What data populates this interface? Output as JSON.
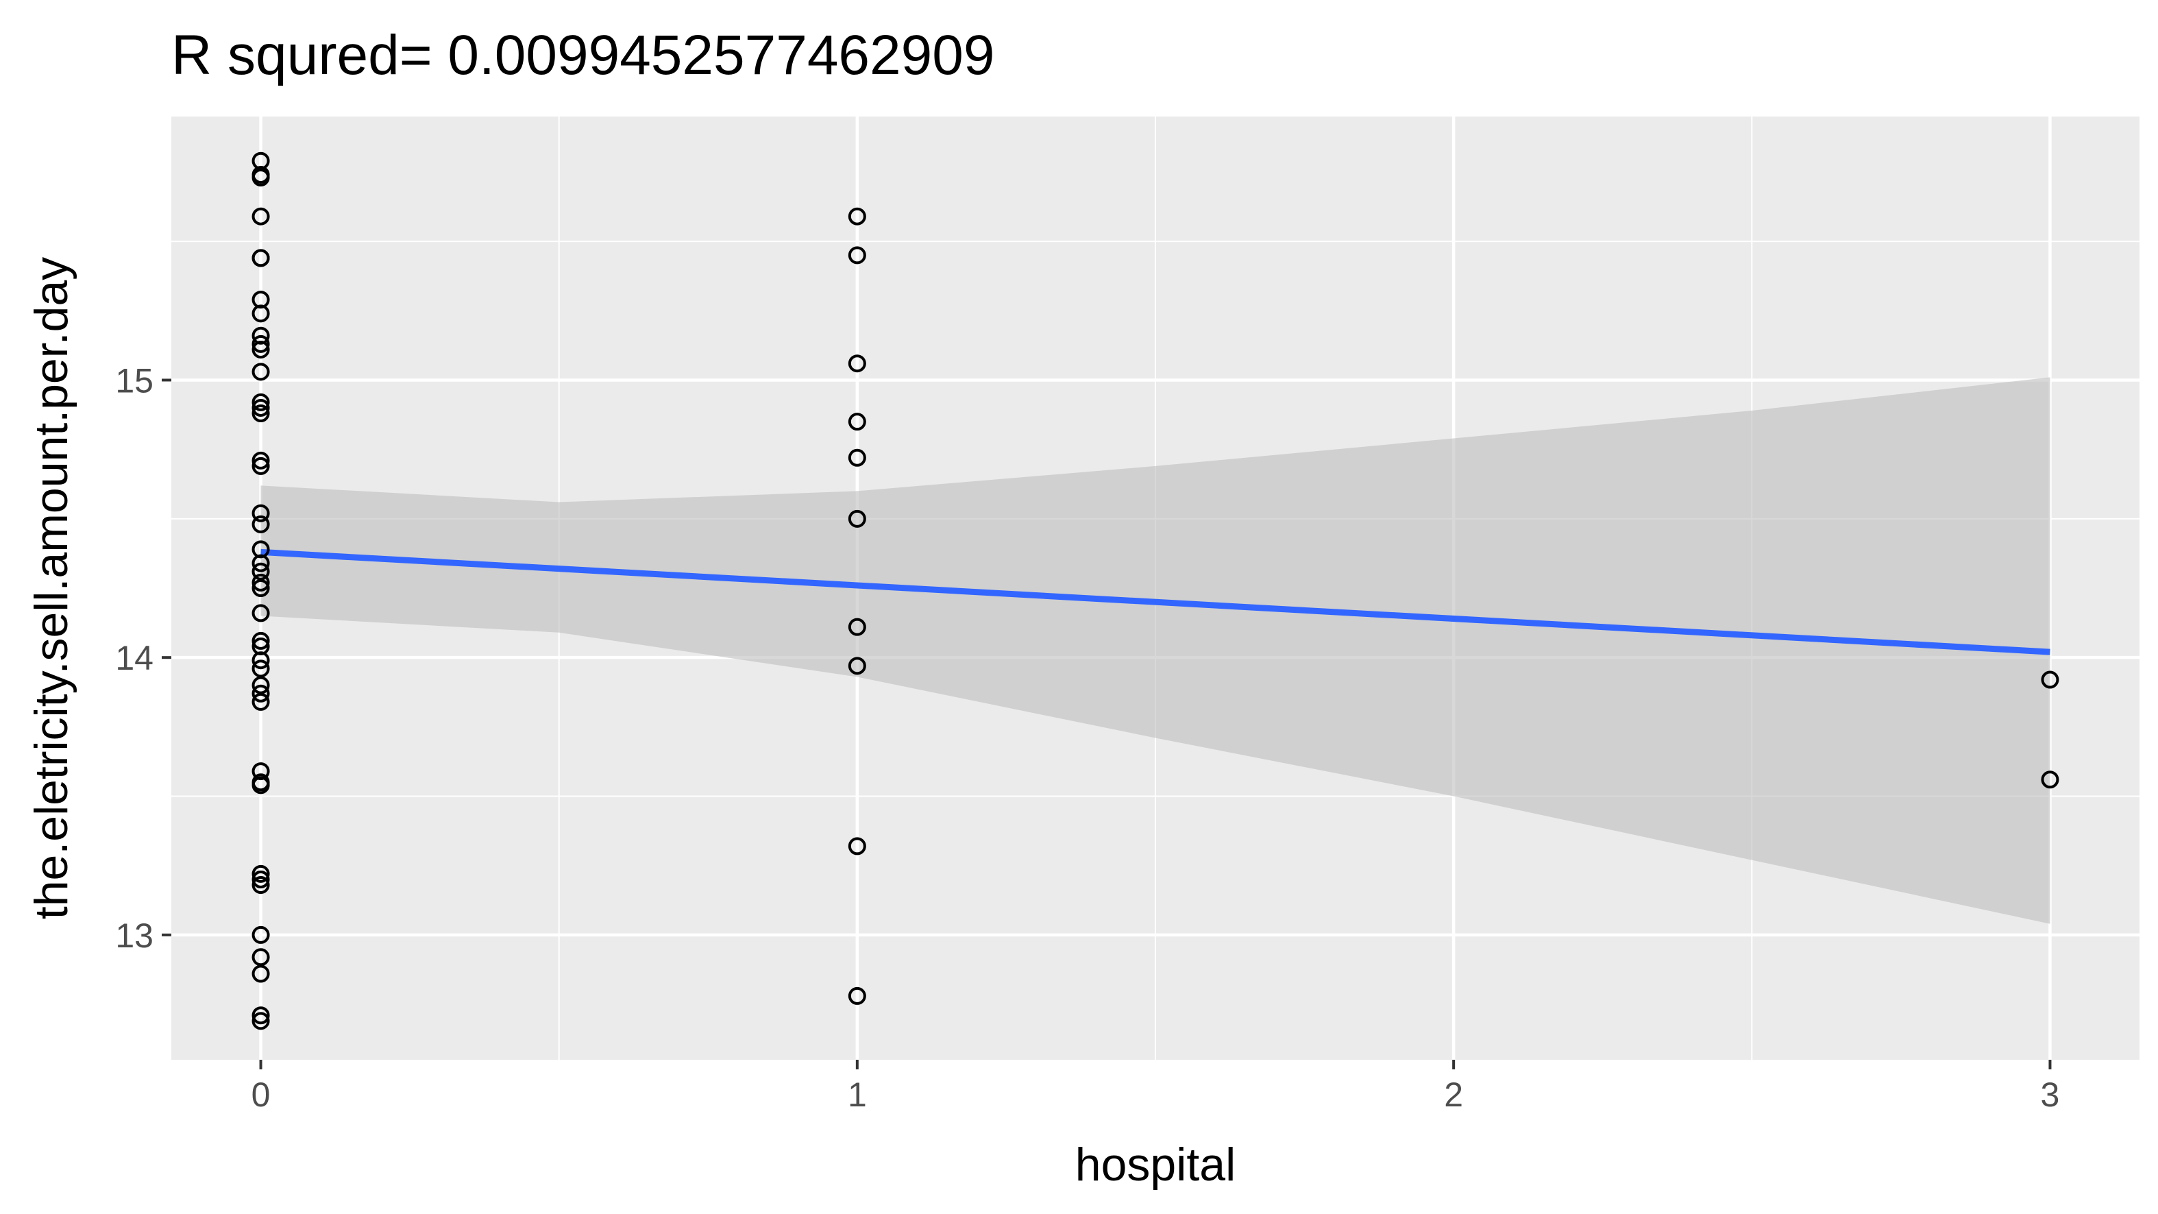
{
  "chart_data": {
    "type": "scatter",
    "title": "R squred= 0.0099452577462909",
    "xlabel": "hospital",
    "ylabel": "the.eletricity.sell.amount.per.day",
    "xlim": [
      -0.15,
      3.15
    ],
    "ylim": [
      12.55,
      15.95
    ],
    "x_ticks": [
      0,
      1,
      2,
      3
    ],
    "y_ticks": [
      13,
      14,
      15
    ],
    "grid": true,
    "points": [
      {
        "x": 0,
        "y": 15.79
      },
      {
        "x": 0,
        "y": 15.74
      },
      {
        "x": 0,
        "y": 15.73
      },
      {
        "x": 0,
        "y": 15.59
      },
      {
        "x": 0,
        "y": 15.44
      },
      {
        "x": 0,
        "y": 15.44
      },
      {
        "x": 0,
        "y": 15.29
      },
      {
        "x": 0,
        "y": 15.24
      },
      {
        "x": 0,
        "y": 15.16
      },
      {
        "x": 0,
        "y": 15.13
      },
      {
        "x": 0,
        "y": 15.11
      },
      {
        "x": 0,
        "y": 15.03
      },
      {
        "x": 0,
        "y": 14.92
      },
      {
        "x": 0,
        "y": 14.9
      },
      {
        "x": 0,
        "y": 14.88
      },
      {
        "x": 0,
        "y": 14.71
      },
      {
        "x": 0,
        "y": 14.69
      },
      {
        "x": 0,
        "y": 14.52
      },
      {
        "x": 0,
        "y": 14.48
      },
      {
        "x": 0,
        "y": 14.39
      },
      {
        "x": 0,
        "y": 14.34
      },
      {
        "x": 0,
        "y": 14.31
      },
      {
        "x": 0,
        "y": 14.27
      },
      {
        "x": 0,
        "y": 14.25
      },
      {
        "x": 0,
        "y": 14.16
      },
      {
        "x": 0,
        "y": 14.06
      },
      {
        "x": 0,
        "y": 14.04
      },
      {
        "x": 0,
        "y": 13.99
      },
      {
        "x": 0,
        "y": 13.96
      },
      {
        "x": 0,
        "y": 13.9
      },
      {
        "x": 0,
        "y": 13.87
      },
      {
        "x": 0,
        "y": 13.84
      },
      {
        "x": 0,
        "y": 13.59
      },
      {
        "x": 0,
        "y": 13.55
      },
      {
        "x": 0,
        "y": 13.54
      },
      {
        "x": 0,
        "y": 13.22
      },
      {
        "x": 0,
        "y": 13.2
      },
      {
        "x": 0,
        "y": 13.18
      },
      {
        "x": 0,
        "y": 13.0
      },
      {
        "x": 0,
        "y": 12.92
      },
      {
        "x": 0,
        "y": 12.86
      },
      {
        "x": 0,
        "y": 12.71
      },
      {
        "x": 0,
        "y": 12.69
      },
      {
        "x": 1,
        "y": 15.59
      },
      {
        "x": 1,
        "y": 15.45
      },
      {
        "x": 1,
        "y": 15.06
      },
      {
        "x": 1,
        "y": 14.85
      },
      {
        "x": 1,
        "y": 14.72
      },
      {
        "x": 1,
        "y": 14.5
      },
      {
        "x": 1,
        "y": 14.11
      },
      {
        "x": 1,
        "y": 13.97
      },
      {
        "x": 1,
        "y": 13.32
      },
      {
        "x": 1,
        "y": 12.78
      },
      {
        "x": 3,
        "y": 13.92
      },
      {
        "x": 3,
        "y": 13.56
      }
    ],
    "fit_line": {
      "x": [
        0,
        3
      ],
      "y": [
        14.38,
        14.02
      ]
    },
    "confidence_band": {
      "x": [
        0,
        0.5,
        1,
        1.5,
        2,
        2.5,
        3
      ],
      "upper": [
        14.62,
        14.56,
        14.6,
        14.69,
        14.79,
        14.89,
        15.01
      ],
      "lower": [
        14.15,
        14.09,
        13.93,
        13.71,
        13.5,
        13.27,
        13.04
      ]
    },
    "colors": {
      "panel": "#ebebeb",
      "grid": "#ffffff",
      "fit_line": "#3366ff",
      "band": "#bebebe"
    }
  }
}
